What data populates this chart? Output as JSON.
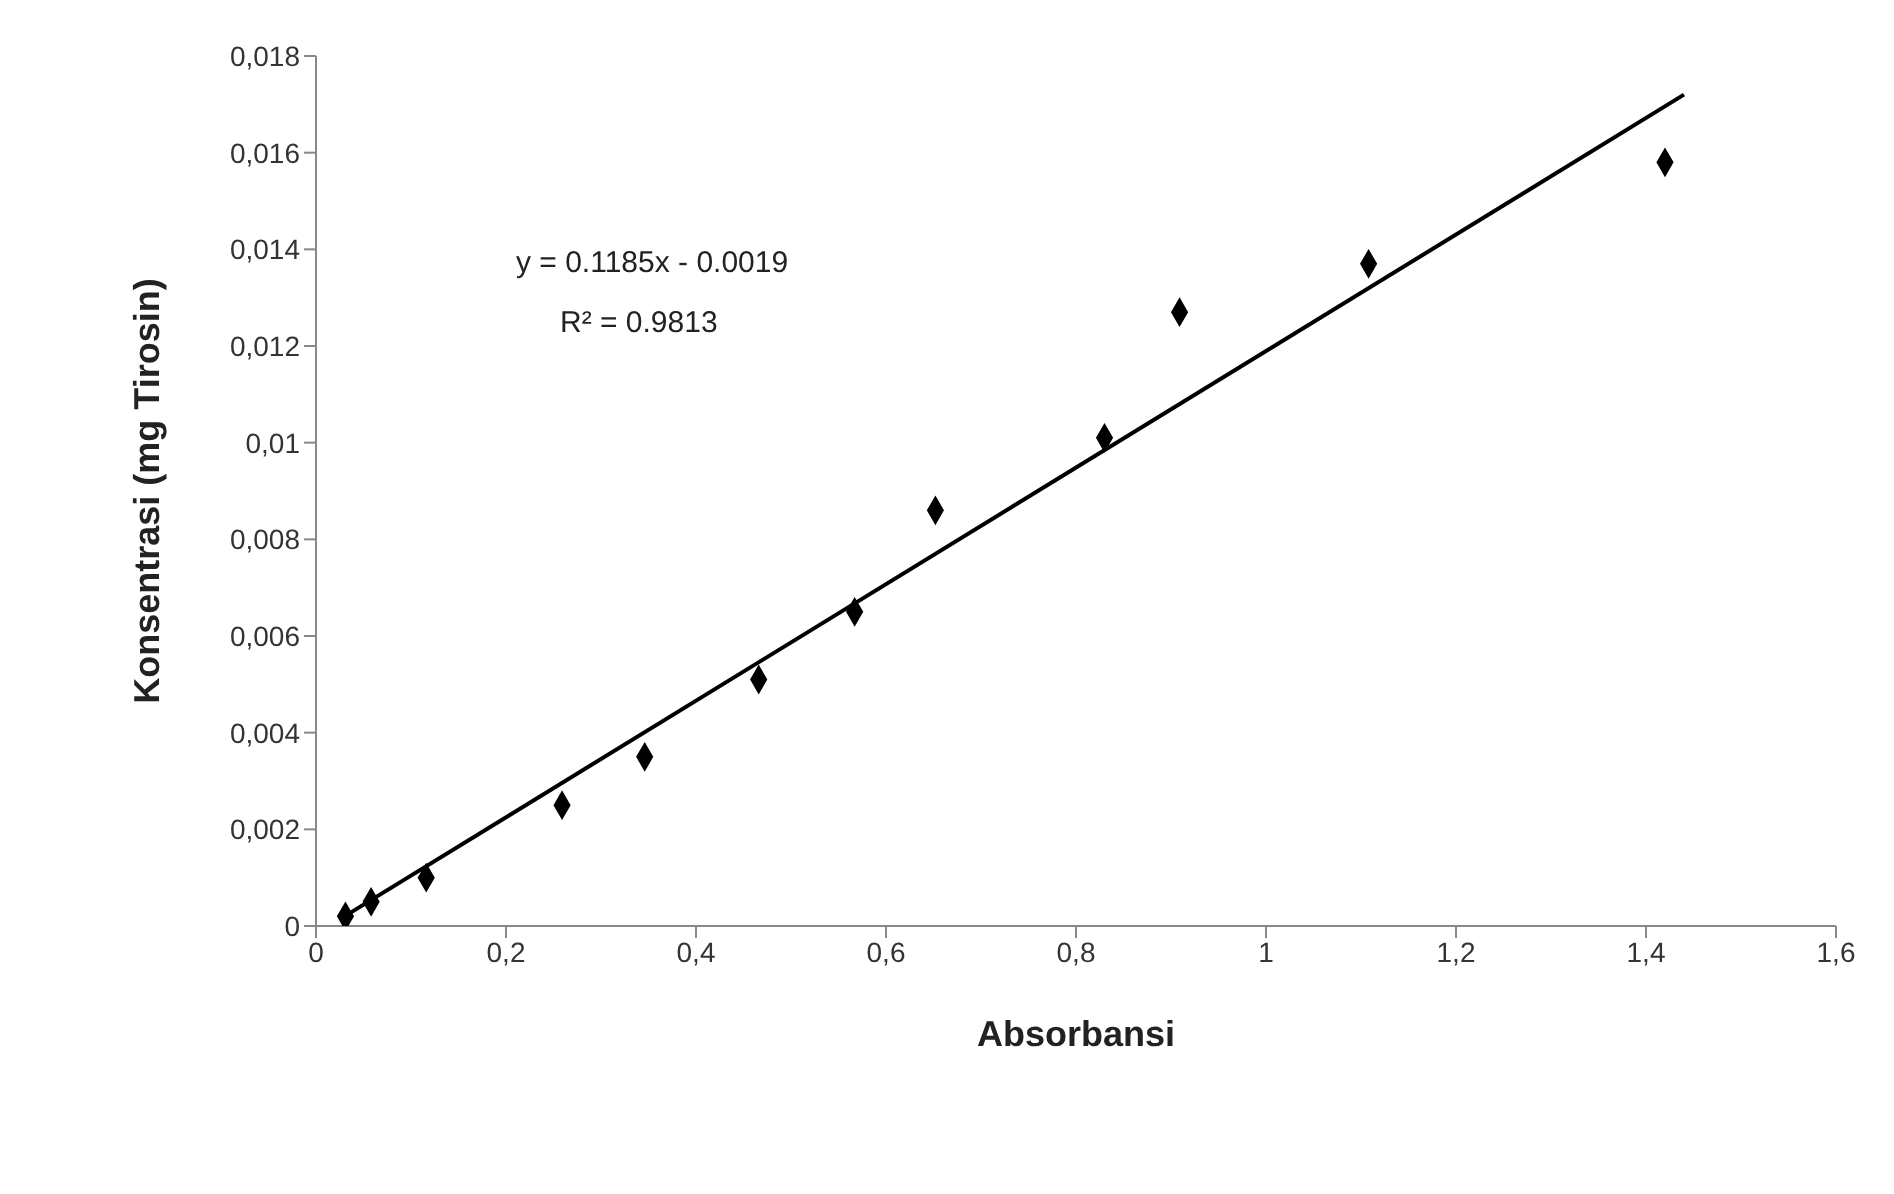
{
  "chart_data": {
    "type": "scatter",
    "xlabel": "Absorbansi",
    "ylabel": "Konsentrasi (mg Tirosin)",
    "annotations": [
      "y = 0.1185x - 0.0019",
      "R² = 0.9813"
    ],
    "series": [
      {
        "type": "scatter",
        "color": "#000000",
        "marker": "diamond",
        "x": [
          0.031,
          0.058,
          0.116,
          0.259,
          0.346,
          0.466,
          0.567,
          0.652,
          0.83,
          0.909,
          1.108,
          1.42
        ],
        "values": [
          0.0002,
          0.0005,
          0.001,
          0.0025,
          0.0035,
          0.0051,
          0.0065,
          0.0086,
          0.0101,
          0.0127,
          0.0137,
          0.0158
        ]
      },
      {
        "type": "line",
        "color": "#000000",
        "marker": "none",
        "x": [
          0.03,
          1.44
        ],
        "values": [
          0.0002,
          0.0172
        ]
      }
    ],
    "xlim": [
      0,
      1.6
    ],
    "ylim": [
      0,
      0.018
    ],
    "xticks": [
      0,
      {
        "value": 0.2,
        "label": "0,2"
      },
      {
        "value": 0.4,
        "label": "0,4"
      },
      {
        "value": 0.6,
        "label": "0,6"
      },
      {
        "value": 0.8,
        "label": "0,8"
      },
      1,
      {
        "value": 1.2,
        "label": "1,2"
      },
      {
        "value": 1.4,
        "label": "1,4"
      },
      {
        "value": 1.6,
        "label": "1,6"
      }
    ],
    "yticks": [
      0,
      {
        "value": 0.002,
        "label": "0,002"
      },
      {
        "value": 0.004,
        "label": "0,004"
      },
      {
        "value": 0.006,
        "label": "0,006"
      },
      {
        "value": 0.008,
        "label": "0,008"
      },
      {
        "value": 0.01,
        "label": "0,01"
      },
      {
        "value": 0.012,
        "label": "0,012"
      },
      {
        "value": 0.014,
        "label": "0,014"
      },
      {
        "value": 0.016,
        "label": "0,016"
      },
      {
        "value": 0.018,
        "label": "0,018"
      }
    ],
    "grid": false
  }
}
